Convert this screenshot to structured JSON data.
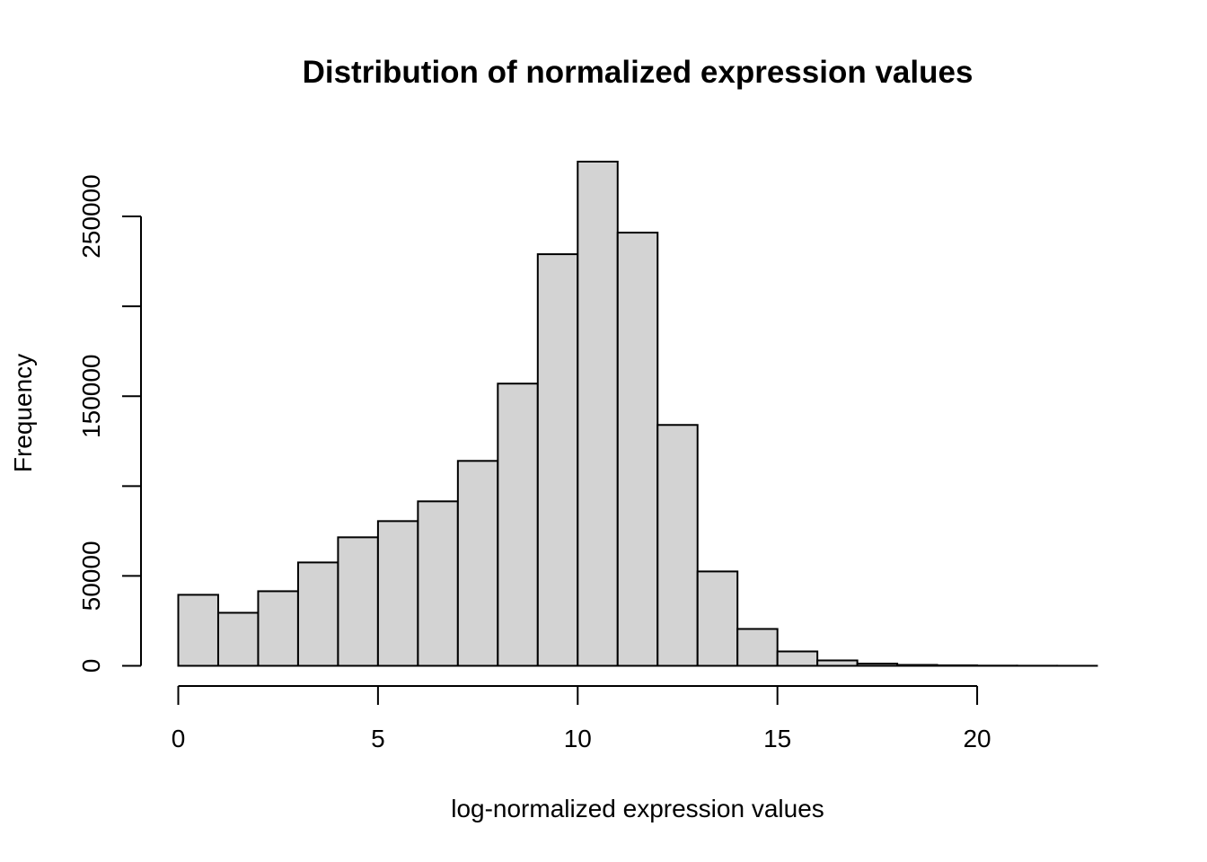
{
  "chart_data": {
    "type": "bar",
    "title": "Distribution of normalized expression values",
    "xlabel": "log-normalized expression values",
    "ylabel": "Frequency",
    "bin_edges": [
      0,
      1,
      2,
      3,
      4,
      5,
      6,
      7,
      8,
      9,
      10,
      11,
      12,
      13,
      14,
      15,
      16,
      17,
      18,
      19,
      20,
      21,
      22,
      23
    ],
    "values": [
      39500,
      29500,
      41500,
      57500,
      71500,
      80500,
      91500,
      114000,
      157000,
      229000,
      280500,
      241000,
      134000,
      52500,
      20500,
      8000,
      3000,
      1200,
      500,
      250,
      100,
      50,
      20
    ],
    "xlim": [
      0,
      23
    ],
    "ylim": [
      0,
      280500
    ],
    "x_ticks": [
      0,
      5,
      10,
      15,
      20
    ],
    "y_ticks": [
      0,
      50000,
      100000,
      150000,
      200000,
      250000
    ],
    "y_tick_labels": [
      "0",
      "50000",
      "",
      "150000",
      "",
      "250000"
    ],
    "bar_color": "#d3d3d3",
    "grid": false,
    "legend": "none"
  }
}
